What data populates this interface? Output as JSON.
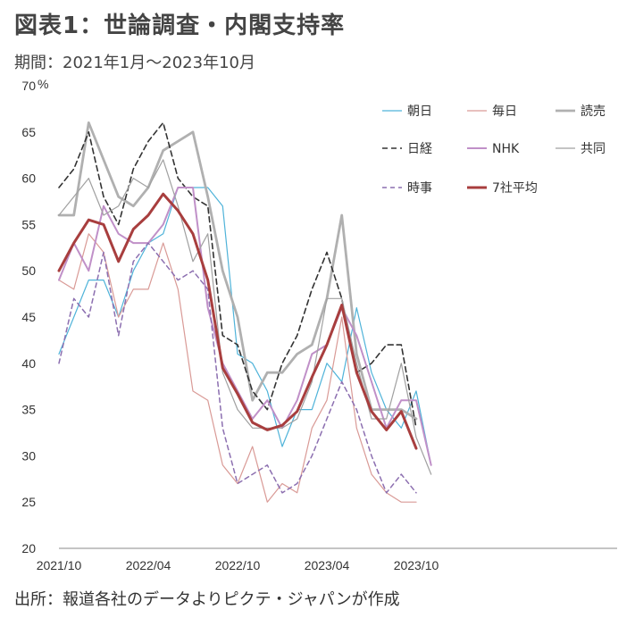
{
  "header": {
    "title": "図表1：世論調査・内閣支持率",
    "subtitle": "期間：2021年1月～2023年10月"
  },
  "footer": {
    "source": "出所：報道各社のデータよりピクテ・ジャパンが作成"
  },
  "chart_data": {
    "type": "line",
    "ylabel": "%",
    "ylim": [
      20,
      70
    ],
    "yticks": [
      20,
      25,
      30,
      35,
      40,
      45,
      50,
      55,
      60,
      65,
      70
    ],
    "xlim": [
      0,
      37.5
    ],
    "xticks": [
      {
        "x": 0,
        "label": "2021/10"
      },
      {
        "x": 6,
        "label": "2022/04"
      },
      {
        "x": 12,
        "label": "2022/10"
      },
      {
        "x": 18,
        "label": "2023/04"
      },
      {
        "x": 24,
        "label": "2023/10"
      }
    ],
    "grid": false,
    "legend_position": "top-right",
    "series": [
      {
        "name": "朝日",
        "color": "#4fb3d9",
        "width": 1.2,
        "dash": "",
        "points": [
          [
            0,
            41
          ],
          [
            1,
            45
          ],
          [
            2,
            49
          ],
          [
            3,
            49
          ],
          [
            4,
            45
          ],
          [
            5,
            50
          ],
          [
            6,
            53
          ],
          [
            7,
            54
          ],
          [
            8,
            59
          ],
          [
            9,
            59
          ],
          [
            10,
            59
          ],
          [
            11,
            57
          ],
          [
            12,
            41
          ],
          [
            13,
            40
          ],
          [
            14,
            37
          ],
          [
            15,
            31
          ],
          [
            16,
            35
          ],
          [
            17,
            35
          ],
          [
            18,
            40
          ],
          [
            19,
            38
          ],
          [
            20,
            46
          ],
          [
            21,
            39
          ],
          [
            22,
            35
          ],
          [
            23,
            33
          ],
          [
            24,
            37
          ],
          [
            25,
            29
          ]
        ]
      },
      {
        "name": "毎日",
        "color": "#d99a96",
        "width": 1.2,
        "dash": "",
        "points": [
          [
            0,
            49
          ],
          [
            1,
            48
          ],
          [
            2,
            54
          ],
          [
            3,
            52
          ],
          [
            4,
            45
          ],
          [
            5,
            48
          ],
          [
            6,
            48
          ],
          [
            7,
            53
          ],
          [
            8,
            48
          ],
          [
            9,
            37
          ],
          [
            10,
            36
          ],
          [
            11,
            29
          ],
          [
            12,
            27
          ],
          [
            13,
            31
          ],
          [
            14,
            25
          ],
          [
            15,
            27
          ],
          [
            16,
            26
          ],
          [
            17,
            33
          ],
          [
            18,
            36
          ],
          [
            19,
            45
          ],
          [
            20,
            33
          ],
          [
            21,
            28
          ],
          [
            22,
            26
          ],
          [
            23,
            25
          ],
          [
            24,
            25
          ]
        ]
      },
      {
        "name": "読売",
        "color": "#b0b0b0",
        "width": 2.8,
        "dash": "",
        "points": [
          [
            0,
            56
          ],
          [
            1,
            56
          ],
          [
            2,
            66
          ],
          [
            3,
            62
          ],
          [
            4,
            58
          ],
          [
            5,
            57
          ],
          [
            6,
            59
          ],
          [
            7,
            63
          ],
          [
            8,
            64
          ],
          [
            9,
            65
          ],
          [
            10,
            58
          ],
          [
            11,
            50
          ],
          [
            12,
            45
          ],
          [
            13,
            36
          ],
          [
            14,
            39
          ],
          [
            15,
            39
          ],
          [
            16,
            41
          ],
          [
            17,
            42
          ],
          [
            18,
            47
          ],
          [
            19,
            56
          ],
          [
            20,
            41
          ],
          [
            21,
            35
          ],
          [
            22,
            35
          ],
          [
            23,
            35
          ],
          [
            24,
            34
          ]
        ]
      },
      {
        "name": "日経",
        "color": "#333333",
        "width": 1.6,
        "dash": "6,4",
        "points": [
          [
            0,
            59
          ],
          [
            1,
            61
          ],
          [
            2,
            65
          ],
          [
            3,
            58
          ],
          [
            4,
            55
          ],
          [
            5,
            61
          ],
          [
            6,
            64
          ],
          [
            7,
            66
          ],
          [
            8,
            60
          ],
          [
            9,
            58
          ],
          [
            10,
            57
          ],
          [
            11,
            43
          ],
          [
            12,
            42
          ],
          [
            13,
            37
          ],
          [
            14,
            35
          ],
          [
            15,
            40
          ],
          [
            16,
            43
          ],
          [
            17,
            48
          ],
          [
            18,
            52
          ],
          [
            19,
            47
          ],
          [
            20,
            39
          ],
          [
            21,
            40
          ],
          [
            22,
            42
          ],
          [
            23,
            42
          ],
          [
            24,
            33
          ]
        ]
      },
      {
        "name": "NHK",
        "color": "#c090c8",
        "width": 2.0,
        "dash": "",
        "points": [
          [
            0,
            49
          ],
          [
            1,
            53
          ],
          [
            2,
            50
          ],
          [
            3,
            57
          ],
          [
            4,
            54
          ],
          [
            5,
            53
          ],
          [
            6,
            53
          ],
          [
            7,
            55
          ],
          [
            8,
            59
          ],
          [
            9,
            59
          ],
          [
            10,
            46
          ],
          [
            11,
            40
          ],
          [
            12,
            37
          ],
          [
            13,
            34
          ],
          [
            14,
            36
          ],
          [
            15,
            33
          ],
          [
            16,
            36
          ],
          [
            17,
            41
          ],
          [
            18,
            42
          ],
          [
            19,
            46
          ],
          [
            20,
            43
          ],
          [
            21,
            38
          ],
          [
            22,
            33
          ],
          [
            23,
            36
          ],
          [
            24,
            36
          ],
          [
            25,
            29
          ]
        ]
      },
      {
        "name": "共同",
        "color": "#a0a0a0",
        "width": 1.2,
        "dash": "",
        "points": [
          [
            0,
            56
          ],
          [
            1,
            58
          ],
          [
            2,
            60
          ],
          [
            3,
            56
          ],
          [
            4,
            57
          ],
          [
            5,
            60
          ],
          [
            6,
            59
          ],
          [
            7,
            62
          ],
          [
            8,
            57
          ],
          [
            9,
            51
          ],
          [
            10,
            54
          ],
          [
            11,
            39
          ],
          [
            12,
            35
          ],
          [
            13,
            33
          ],
          [
            14,
            33
          ],
          [
            15,
            33
          ],
          [
            16,
            34
          ],
          [
            17,
            38
          ],
          [
            18,
            47
          ],
          [
            19,
            47
          ],
          [
            20,
            40
          ],
          [
            21,
            34
          ],
          [
            22,
            34
          ],
          [
            23,
            40
          ],
          [
            24,
            32
          ],
          [
            25,
            28
          ]
        ]
      },
      {
        "name": "時事",
        "color": "#8c6fb0",
        "width": 1.5,
        "dash": "5,4",
        "points": [
          [
            0,
            40
          ],
          [
            1,
            47
          ],
          [
            2,
            45
          ],
          [
            3,
            52
          ],
          [
            4,
            43
          ],
          [
            5,
            51
          ],
          [
            6,
            53
          ],
          [
            7,
            51
          ],
          [
            8,
            49
          ],
          [
            9,
            50
          ],
          [
            10,
            48
          ],
          [
            11,
            33
          ],
          [
            12,
            27
          ],
          [
            13,
            28
          ],
          [
            14,
            29
          ],
          [
            15,
            26
          ],
          [
            16,
            27
          ],
          [
            17,
            30
          ],
          [
            18,
            34
          ],
          [
            19,
            38
          ],
          [
            20,
            35
          ],
          [
            21,
            30
          ],
          [
            22,
            26
          ],
          [
            23,
            28
          ],
          [
            24,
            26
          ]
        ]
      },
      {
        "name": "7社平均",
        "color": "#a83e3e",
        "width": 3.0,
        "dash": "",
        "points": [
          [
            0,
            50
          ],
          [
            1,
            53
          ],
          [
            2,
            55.5
          ],
          [
            3,
            55
          ],
          [
            4,
            51
          ],
          [
            5,
            54.5
          ],
          [
            6,
            56
          ],
          [
            7,
            58.3
          ],
          [
            8,
            56.5
          ],
          [
            9,
            54
          ],
          [
            10,
            49
          ],
          [
            11,
            39.5
          ],
          [
            12,
            36.7
          ],
          [
            13,
            33.6
          ],
          [
            14,
            32.8
          ],
          [
            15,
            33.3
          ],
          [
            16,
            34.8
          ],
          [
            17,
            38.5
          ],
          [
            18,
            42
          ],
          [
            19,
            46.3
          ],
          [
            20,
            39
          ],
          [
            21,
            34.8
          ],
          [
            22,
            32.8
          ],
          [
            23,
            34.8
          ],
          [
            24,
            30.8
          ]
        ]
      }
    ]
  }
}
